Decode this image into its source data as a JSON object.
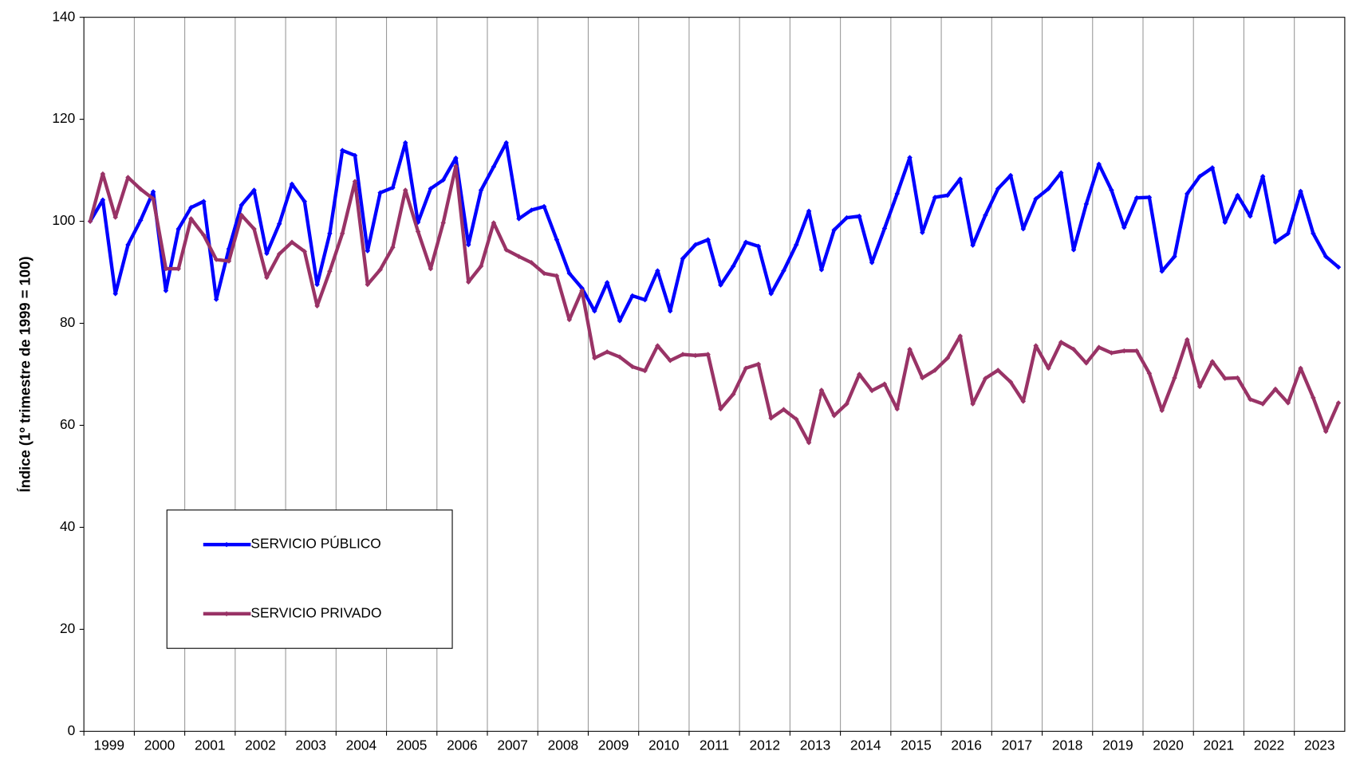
{
  "chart_data": {
    "type": "line",
    "y_label": "Índice (1º trimestre de 1999 = 100)",
    "categories": [
      "1999",
      null,
      null,
      null,
      "2000",
      null,
      null,
      null,
      "2001",
      null,
      null,
      null,
      "2002",
      null,
      null,
      null,
      "2003",
      null,
      null,
      null,
      "2004",
      null,
      null,
      null,
      "2005",
      null,
      null,
      null,
      "2006",
      null,
      null,
      null,
      "2007",
      null,
      null,
      null,
      "2008",
      null,
      null,
      null,
      "2009",
      null,
      null,
      null,
      "2010",
      null,
      null,
      null,
      "2011",
      null,
      null,
      null,
      "2012",
      null,
      null,
      null,
      "2013",
      null,
      null,
      null,
      "2014",
      null,
      null,
      null,
      "2015",
      null,
      null,
      null,
      "2016",
      null,
      null,
      null,
      "2017",
      null,
      null,
      null,
      "2018",
      null,
      null,
      null,
      "2019",
      null,
      null,
      null,
      "2020",
      null,
      null,
      null,
      "2021",
      null,
      null,
      null,
      "2022",
      null,
      null,
      null,
      "2023",
      null,
      null,
      null
    ],
    "series": [
      {
        "name": "SERVICIO PÚBLICO",
        "color": "#0000ff",
        "values": [
          100,
          104.2,
          85.8,
          95.4,
          100.2,
          105.8,
          86.4,
          98.5,
          102.7,
          103.9,
          84.7,
          94.6,
          103.2,
          106.1,
          93.7,
          99.5,
          107.3,
          103.9,
          87.6,
          97.6,
          113.9,
          112.9,
          94.2,
          105.6,
          106.6,
          115.4,
          99.8,
          106.4,
          108.1,
          112.4,
          95.4,
          106.1,
          110.7,
          115.4,
          100.5,
          102.2,
          102.9,
          96.4,
          89.8,
          86.9,
          82.4,
          88.0,
          80.5,
          85.4,
          84.6,
          90.3,
          82.4,
          92.7,
          95.4,
          96.4,
          87.5,
          91.2,
          95.9,
          95.1,
          85.8,
          90.3,
          95.4,
          102.0,
          90.5,
          98.3,
          100.7,
          101.0,
          91.9,
          98.6,
          105.4,
          112.5,
          97.8,
          104.7,
          105.1,
          108.3,
          95.3,
          101.2,
          106.4,
          109.0,
          98.5,
          104.4,
          106.4,
          109.5,
          94.4,
          103.4,
          111.2,
          106.1,
          98.8,
          104.6,
          104.7,
          90.2,
          93.1,
          105.4,
          108.8,
          110.5,
          99.8,
          105.1,
          101.0,
          108.8,
          95.9,
          97.6,
          105.9,
          97.6,
          93.1,
          91.0
        ]
      },
      {
        "name": "SERVICIO PRIVADO",
        "color": "#993366",
        "values": [
          100,
          109.3,
          100.8,
          108.6,
          106.3,
          104.4,
          90.7,
          90.7,
          100.5,
          97.3,
          92.5,
          92.2,
          101.2,
          98.5,
          89.0,
          93.6,
          95.9,
          94.1,
          83.4,
          90.2,
          97.6,
          107.8,
          87.6,
          90.5,
          94.9,
          106.1,
          98.0,
          90.7,
          99.7,
          110.8,
          88.1,
          91.2,
          99.7,
          94.4,
          93.1,
          91.9,
          89.8,
          89.3,
          80.7,
          86.4,
          73.2,
          74.4,
          73.4,
          71.5,
          70.7,
          75.6,
          72.7,
          73.9,
          73.7,
          73.9,
          63.2,
          66.1,
          71.2,
          72.0,
          61.4,
          63.1,
          61.2,
          56.6,
          66.9,
          61.9,
          64.2,
          70.0,
          66.8,
          68.1,
          63.2,
          74.9,
          69.3,
          70.8,
          73.2,
          77.5,
          64.2,
          69.2,
          70.8,
          68.5,
          64.7,
          75.6,
          71.2,
          76.3,
          74.9,
          72.2,
          75.3,
          74.2,
          74.6,
          74.6,
          70.2,
          62.9,
          69.3,
          76.8,
          67.6,
          72.5,
          69.2,
          69.3,
          65.1,
          64.2,
          67.1,
          64.4,
          71.2,
          65.4,
          58.8,
          64.4
        ]
      }
    ],
    "ylim": [
      0,
      140
    ],
    "yticks": [
      0,
      20,
      40,
      60,
      80,
      100,
      120,
      140
    ],
    "x_grid": true
  }
}
